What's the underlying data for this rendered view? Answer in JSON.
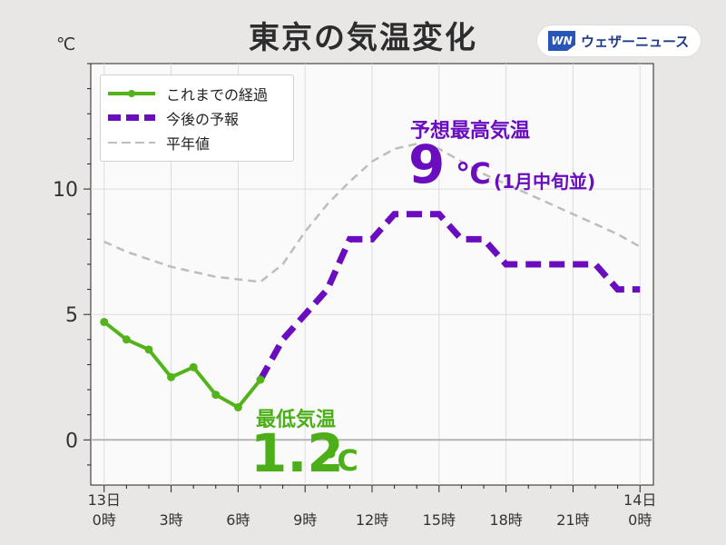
{
  "header": {
    "title": "東京の気温変化",
    "unit_label": "℃",
    "brand_logo": "WN",
    "brand_name": "ウェザーニュース"
  },
  "legend": {
    "observed": "これまでの経過",
    "forecast": "今後の予報",
    "normal": "平年値"
  },
  "annotations": {
    "forecast_title": "予想最高気温",
    "forecast_value": "9",
    "forecast_unit": "℃",
    "forecast_note": "(1月中旬並)",
    "min_title": "最低気温",
    "min_value": "1.2",
    "min_unit": "℃"
  },
  "chart_data": {
    "type": "line",
    "title": "東京の気温変化",
    "ylabel": "℃",
    "ylim": [
      -1.8,
      15
    ],
    "xlim": [
      -0.6,
      24.6
    ],
    "y_ticks": [
      0,
      5,
      10
    ],
    "y_tick_labels": [
      "0",
      "5",
      "10"
    ],
    "x_ticks": [
      0,
      3,
      6,
      9,
      12,
      15,
      18,
      21,
      24
    ],
    "x_tick_labels": [
      [
        "13日",
        "0時"
      ],
      [
        "3時"
      ],
      [
        "6時"
      ],
      [
        "9時"
      ],
      [
        "12時"
      ],
      [
        "15時"
      ],
      [
        "18時"
      ],
      [
        "21時"
      ],
      [
        "14日",
        "0時"
      ]
    ],
    "grid": true,
    "legend_position": "top-left",
    "series": [
      {
        "name": "これまでの経過",
        "style": "solid-markers",
        "color": "#52b41a",
        "x": [
          0,
          1,
          2,
          3,
          4,
          5,
          6,
          7
        ],
        "y": [
          4.7,
          4.0,
          3.6,
          2.5,
          2.9,
          1.8,
          1.3,
          2.4
        ]
      },
      {
        "name": "今後の予報",
        "style": "dashed-thick",
        "color": "#6a0dbf",
        "x": [
          7,
          8,
          9,
          10,
          11,
          12,
          13,
          14,
          15,
          16,
          17,
          18,
          19,
          20,
          21,
          22,
          23,
          24
        ],
        "y": [
          2.4,
          4.0,
          5.0,
          6.0,
          8.0,
          8.0,
          9.0,
          9.0,
          9.0,
          8.0,
          8.0,
          7.0,
          7.0,
          7.0,
          7.0,
          7.0,
          6.0,
          6.0
        ]
      },
      {
        "name": "平年値",
        "style": "dashed-thin",
        "color": "#bdbdbd",
        "x": [
          0,
          1,
          2,
          3,
          4,
          5,
          6,
          7,
          8,
          9,
          10,
          11,
          12,
          13,
          14,
          15,
          16,
          17,
          18,
          19,
          20,
          21,
          22,
          23,
          24
        ],
        "y": [
          7.9,
          7.5,
          7.2,
          6.9,
          6.7,
          6.5,
          6.4,
          6.3,
          7.0,
          8.3,
          9.4,
          10.3,
          11.1,
          11.6,
          11.8,
          11.6,
          11.1,
          10.6,
          10.2,
          9.8,
          9.4,
          9.0,
          8.6,
          8.2,
          7.7
        ]
      }
    ]
  }
}
